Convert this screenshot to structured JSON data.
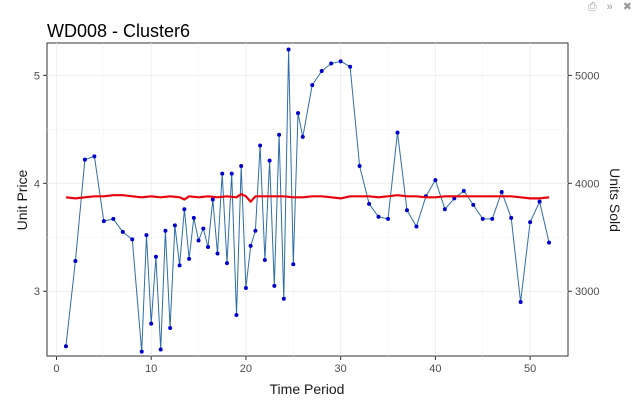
{
  "toolbar": {
    "icons": [
      "export-icon",
      "collapse-icon",
      "close-icon"
    ],
    "glyphs": [
      "⎙",
      "»",
      "✖"
    ]
  },
  "chart_data": {
    "type": "line",
    "title": "WD008 - Cluster6",
    "xlabel": "Time Period",
    "ylabel": "Unit Price",
    "y2label": "Units Sold",
    "xlim": [
      -1,
      54
    ],
    "ylim": [
      2.4,
      5.3
    ],
    "y2lim": [
      2400,
      5300
    ],
    "x_ticks": [
      0,
      10,
      20,
      30,
      40,
      50
    ],
    "y_ticks": [
      3,
      4,
      5
    ],
    "y2_ticks": [
      3000,
      4000,
      5000
    ],
    "grid": true,
    "series": [
      {
        "name": "Units Sold",
        "axis": "right",
        "color": "#2f6ea8",
        "marker_color": "#0000cc",
        "markers": true,
        "x": [
          1,
          2,
          3,
          4,
          5,
          6,
          7,
          8,
          9,
          9.5,
          10,
          10.5,
          11,
          11.5,
          12,
          12.5,
          13,
          13.5,
          14,
          14.5,
          15,
          15.5,
          16,
          16.5,
          17,
          17.5,
          18,
          18.5,
          19,
          19.5,
          20,
          20.5,
          21,
          21.5,
          22,
          22.5,
          23,
          23.5,
          24,
          24.5,
          25,
          25.5,
          26,
          27,
          28,
          29,
          30,
          31,
          32,
          33,
          34,
          35,
          36,
          37,
          38,
          39,
          40,
          41,
          42,
          43,
          44,
          45,
          46,
          47,
          48,
          49,
          50,
          51,
          52
        ],
        "values": [
          2490,
          3280,
          4220,
          4250,
          3650,
          3670,
          3550,
          3480,
          2440,
          3520,
          2700,
          3320,
          2460,
          3560,
          2660,
          3610,
          3240,
          3760,
          3300,
          3680,
          3470,
          3580,
          3410,
          3850,
          3350,
          4090,
          3260,
          4090,
          2780,
          4160,
          3030,
          3420,
          3560,
          4350,
          3290,
          4210,
          3050,
          4450,
          2930,
          5240,
          3250,
          4650,
          4430,
          4910,
          5040,
          5110,
          5130,
          5080,
          4160,
          3810,
          3690,
          3670,
          4470,
          3750,
          3600,
          3880,
          4030,
          3760,
          3860,
          3930,
          3800,
          3670,
          3670,
          3920,
          3680,
          2900,
          3640,
          3830,
          3450
        ]
      },
      {
        "name": "Unit Price",
        "axis": "left",
        "color": "#e8000b",
        "markers": false,
        "x": [
          1,
          2,
          3,
          4,
          5,
          6,
          7,
          8,
          9,
          10,
          11,
          12,
          13,
          13.5,
          14,
          15,
          16,
          17,
          18,
          19,
          19.5,
          20,
          20.5,
          21,
          22,
          23,
          24,
          25,
          26,
          27,
          28,
          29,
          30,
          31,
          32,
          33,
          34,
          35,
          36,
          37,
          38,
          39,
          40,
          41,
          42,
          43,
          44,
          45,
          46,
          47,
          48,
          49,
          50,
          51,
          52
        ],
        "values": [
          3.87,
          3.86,
          3.87,
          3.88,
          3.88,
          3.89,
          3.89,
          3.88,
          3.87,
          3.88,
          3.87,
          3.88,
          3.87,
          3.85,
          3.88,
          3.87,
          3.88,
          3.87,
          3.88,
          3.87,
          3.9,
          3.88,
          3.83,
          3.88,
          3.88,
          3.88,
          3.88,
          3.87,
          3.87,
          3.88,
          3.88,
          3.87,
          3.86,
          3.88,
          3.88,
          3.88,
          3.87,
          3.88,
          3.89,
          3.88,
          3.88,
          3.87,
          3.87,
          3.88,
          3.88,
          3.88,
          3.88,
          3.88,
          3.88,
          3.88,
          3.88,
          3.87,
          3.86,
          3.86,
          3.87
        ]
      }
    ]
  }
}
